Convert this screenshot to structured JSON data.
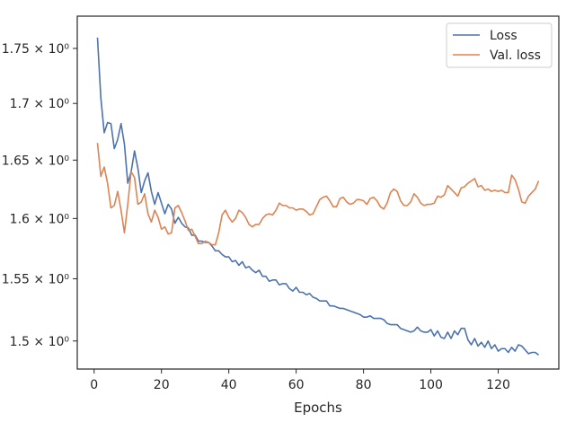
{
  "chart_data": {
    "type": "line",
    "title": "",
    "xlabel": "Epochs",
    "ylabel": "",
    "xlim": [
      -5,
      138
    ],
    "ylim": [
      1.478,
      1.78
    ],
    "yscale": "log",
    "grid": false,
    "legend_placement": "top-right",
    "x_ticks": [
      0,
      20,
      40,
      60,
      80,
      100,
      120
    ],
    "x_tick_labels": [
      "0",
      "20",
      "40",
      "60",
      "80",
      "100",
      "120"
    ],
    "y_ticks": [
      1.5,
      1.55,
      1.6,
      1.65,
      1.7,
      1.75
    ],
    "y_tick_labels": [
      "1.5 × 10⁰",
      "1.55 × 10⁰",
      "1.6 × 10⁰",
      "1.65 × 10⁰",
      "1.7 × 10⁰",
      "1.75 × 10⁰"
    ],
    "x": [
      1,
      2,
      3,
      4,
      5,
      6,
      7,
      8,
      9,
      10,
      11,
      12,
      13,
      14,
      15,
      16,
      17,
      18,
      19,
      20,
      21,
      22,
      23,
      24,
      25,
      26,
      27,
      28,
      29,
      30,
      31,
      32,
      33,
      34,
      35,
      36,
      37,
      38,
      39,
      40,
      41,
      42,
      43,
      44,
      45,
      46,
      47,
      48,
      49,
      50,
      51,
      52,
      53,
      54,
      55,
      56,
      57,
      58,
      59,
      60,
      61,
      62,
      63,
      64,
      65,
      66,
      67,
      68,
      69,
      70,
      71,
      72,
      73,
      74,
      75,
      76,
      77,
      78,
      79,
      80,
      81,
      82,
      83,
      84,
      85,
      86,
      87,
      88,
      89,
      90,
      91,
      92,
      93,
      94,
      95,
      96,
      97,
      98,
      99,
      100,
      101,
      102,
      103,
      104,
      105,
      106,
      107,
      108,
      109,
      110,
      111,
      112,
      113,
      114,
      115,
      116,
      117,
      118,
      119,
      120,
      121,
      122,
      123,
      124,
      125,
      126,
      127,
      128,
      129,
      130,
      131,
      132
    ],
    "series": [
      {
        "name": "Loss",
        "color": "#4c72b0",
        "values": [
          1.76,
          1.705,
          1.674,
          1.683,
          1.682,
          1.66,
          1.668,
          1.682,
          1.664,
          1.63,
          1.64,
          1.658,
          1.643,
          1.622,
          1.632,
          1.639,
          1.623,
          1.612,
          1.622,
          1.613,
          1.604,
          1.612,
          1.608,
          1.596,
          1.601,
          1.596,
          1.593,
          1.592,
          1.586,
          1.586,
          1.581,
          1.581,
          1.58,
          1.58,
          1.577,
          1.573,
          1.573,
          1.57,
          1.568,
          1.568,
          1.564,
          1.565,
          1.561,
          1.564,
          1.559,
          1.56,
          1.557,
          1.555,
          1.557,
          1.552,
          1.552,
          1.548,
          1.549,
          1.549,
          1.545,
          1.546,
          1.546,
          1.542,
          1.54,
          1.543,
          1.539,
          1.539,
          1.537,
          1.538,
          1.535,
          1.534,
          1.532,
          1.532,
          1.532,
          1.528,
          1.528,
          1.527,
          1.526,
          1.526,
          1.525,
          1.524,
          1.523,
          1.522,
          1.521,
          1.519,
          1.519,
          1.52,
          1.518,
          1.518,
          1.518,
          1.517,
          1.514,
          1.513,
          1.513,
          1.513,
          1.51,
          1.509,
          1.508,
          1.507,
          1.508,
          1.511,
          1.508,
          1.507,
          1.507,
          1.509,
          1.504,
          1.508,
          1.503,
          1.502,
          1.507,
          1.502,
          1.508,
          1.505,
          1.51,
          1.51,
          1.501,
          1.497,
          1.502,
          1.496,
          1.499,
          1.495,
          1.5,
          1.494,
          1.497,
          1.492,
          1.494,
          1.494,
          1.491,
          1.495,
          1.492,
          1.497,
          1.496,
          1.493,
          1.49,
          1.491,
          1.491,
          1.489
        ]
      },
      {
        "name": "Val. loss",
        "color": "#dd8452",
        "values": [
          1.665,
          1.636,
          1.644,
          1.63,
          1.609,
          1.611,
          1.623,
          1.607,
          1.588,
          1.612,
          1.64,
          1.635,
          1.612,
          1.614,
          1.621,
          1.604,
          1.597,
          1.607,
          1.601,
          1.591,
          1.593,
          1.587,
          1.588,
          1.609,
          1.611,
          1.605,
          1.598,
          1.59,
          1.591,
          1.585,
          1.579,
          1.579,
          1.581,
          1.58,
          1.578,
          1.578,
          1.588,
          1.603,
          1.607,
          1.601,
          1.597,
          1.6,
          1.607,
          1.605,
          1.601,
          1.595,
          1.593,
          1.595,
          1.595,
          1.6,
          1.603,
          1.604,
          1.603,
          1.607,
          1.613,
          1.611,
          1.611,
          1.609,
          1.609,
          1.607,
          1.608,
          1.608,
          1.606,
          1.603,
          1.604,
          1.61,
          1.616,
          1.618,
          1.619,
          1.615,
          1.61,
          1.61,
          1.617,
          1.618,
          1.614,
          1.612,
          1.613,
          1.616,
          1.616,
          1.615,
          1.612,
          1.617,
          1.618,
          1.615,
          1.61,
          1.608,
          1.613,
          1.622,
          1.625,
          1.623,
          1.615,
          1.611,
          1.611,
          1.614,
          1.621,
          1.618,
          1.613,
          1.611,
          1.612,
          1.612,
          1.613,
          1.619,
          1.618,
          1.62,
          1.628,
          1.625,
          1.622,
          1.619,
          1.626,
          1.627,
          1.63,
          1.632,
          1.634,
          1.627,
          1.628,
          1.624,
          1.625,
          1.623,
          1.624,
          1.623,
          1.624,
          1.622,
          1.622,
          1.637,
          1.633,
          1.625,
          1.614,
          1.613,
          1.619,
          1.622,
          1.625,
          1.632
        ]
      }
    ]
  }
}
